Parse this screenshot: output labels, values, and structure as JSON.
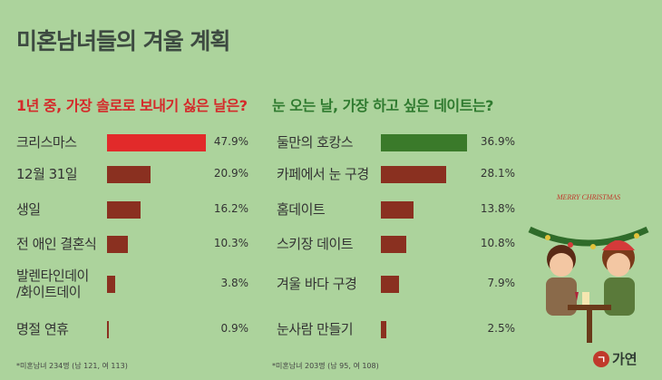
{
  "title": "미혼남녀들의 겨울 계획",
  "chart_data": [
    {
      "type": "bar",
      "title": "1년 중, 가장 솔로로 보내기 싫은 날은?",
      "categories": [
        "크리스마스",
        "12월 31일",
        "생일",
        "전 애인 결혼식",
        "발렌타인데이\n/화이트데이",
        "명절 연휴"
      ],
      "values": [
        47.9,
        20.9,
        16.2,
        10.3,
        3.8,
        0.9
      ],
      "value_labels": [
        "47.9%",
        "20.9%",
        "16.2%",
        "10.3%",
        "3.8%",
        "0.9%"
      ],
      "unit": "%",
      "highlight_color": "#e22a2a",
      "bar_color": "#8a3020",
      "note": "*미혼남녀 234명 (남 121, 여 113)"
    },
    {
      "type": "bar",
      "title": "눈 오는 날, 가장 하고 싶은 데이트는?",
      "categories": [
        "둘만의 호캉스",
        "카페에서 눈 구경",
        "홈데이트",
        "스키장 데이트",
        "겨울 바다 구경",
        "눈사람 만들기"
      ],
      "values": [
        36.9,
        28.1,
        13.8,
        10.8,
        7.9,
        2.5
      ],
      "value_labels": [
        "36.9%",
        "28.1%",
        "13.8%",
        "10.8%",
        "7.9%",
        "2.5%"
      ],
      "unit": "%",
      "highlight_color": "#3a7a2a",
      "bar_color": "#8a3020",
      "note": "*미혼남녀 203명 (남 95, 여 108)"
    }
  ],
  "illustration": {
    "banner_text": "MERRY CHRISTMAS"
  },
  "logo": {
    "icon": "ㄱ",
    "text": "가연"
  },
  "colors": {
    "background": "#acd39c",
    "title": "#3d4a41",
    "left_title": "#d42a2a",
    "right_title": "#2f7a2f"
  }
}
